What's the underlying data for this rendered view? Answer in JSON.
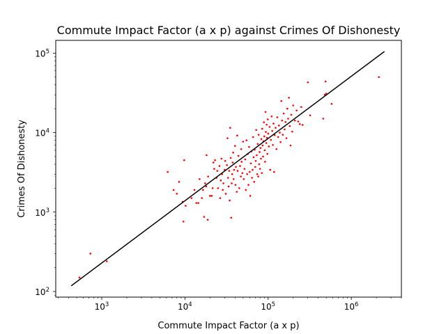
{
  "chart_data": {
    "type": "scatter",
    "title": "Commute Impact Factor (a x p) against Crimes Of Dishonesty",
    "xlabel": "Commute Impact Factor (a x p)",
    "ylabel": "Crimes Of Dishonesty",
    "xscale": "log",
    "yscale": "log",
    "xlim": [
      280,
      4000000
    ],
    "ylim": [
      85,
      145000
    ],
    "grid": false,
    "legend": "none",
    "x_ticks": [
      {
        "value": 1000,
        "base": "10",
        "exp": "3"
      },
      {
        "value": 10000,
        "base": "10",
        "exp": "4"
      },
      {
        "value": 100000,
        "base": "10",
        "exp": "5"
      },
      {
        "value": 1000000,
        "base": "10",
        "exp": "6"
      }
    ],
    "y_ticks": [
      {
        "value": 100,
        "base": "10",
        "exp": "2"
      },
      {
        "value": 1000,
        "base": "10",
        "exp": "3"
      },
      {
        "value": 10000,
        "base": "10",
        "exp": "4"
      },
      {
        "value": 100000,
        "base": "10",
        "exp": "5"
      }
    ],
    "colors": {
      "points": "#ff0000",
      "fit_line": "#000000"
    },
    "fit_line": {
      "x": [
        430,
        2500000
      ],
      "y": [
        118,
        105000
      ]
    },
    "points": [
      [
        540,
        150
      ],
      [
        730,
        300
      ],
      [
        1150,
        240
      ],
      [
        6200,
        3200
      ],
      [
        7300,
        1900
      ],
      [
        8000,
        1700
      ],
      [
        8500,
        2400
      ],
      [
        9400,
        1350
      ],
      [
        9600,
        760
      ],
      [
        9800,
        4500
      ],
      [
        10200,
        1200
      ],
      [
        12000,
        1500
      ],
      [
        13000,
        1900
      ],
      [
        13700,
        1300
      ],
      [
        14500,
        1300
      ],
      [
        15000,
        2600
      ],
      [
        16000,
        1500
      ],
      [
        16500,
        1900
      ],
      [
        17000,
        870
      ],
      [
        17500,
        2300
      ],
      [
        18000,
        2100
      ],
      [
        18200,
        5200
      ],
      [
        18800,
        800
      ],
      [
        19000,
        2800
      ],
      [
        20000,
        1600
      ],
      [
        21000,
        1600
      ],
      [
        21500,
        2000
      ],
      [
        22000,
        4200
      ],
      [
        22500,
        3500
      ],
      [
        23000,
        4500
      ],
      [
        24000,
        2700
      ],
      [
        24500,
        3300
      ],
      [
        25000,
        2000
      ],
      [
        26000,
        3800
      ],
      [
        26500,
        1500
      ],
      [
        27000,
        2500
      ],
      [
        27500,
        4700
      ],
      [
        28000,
        3000
      ],
      [
        28500,
        1900
      ],
      [
        29000,
        2300
      ],
      [
        30000,
        3400
      ],
      [
        30500,
        4400
      ],
      [
        31000,
        1700
      ],
      [
        32000,
        3900
      ],
      [
        32500,
        8500
      ],
      [
        33000,
        2700
      ],
      [
        33500,
        2100
      ],
      [
        34000,
        3300
      ],
      [
        34500,
        1400
      ],
      [
        35000,
        11500
      ],
      [
        35500,
        4800
      ],
      [
        36000,
        850
      ],
      [
        36500,
        2300
      ],
      [
        37000,
        3000
      ],
      [
        37500,
        4200
      ],
      [
        38000,
        5600
      ],
      [
        38500,
        2600
      ],
      [
        39000,
        3400
      ],
      [
        40000,
        6800
      ],
      [
        40500,
        2200
      ],
      [
        41000,
        3700
      ],
      [
        42000,
        1800
      ],
      [
        42500,
        9200
      ],
      [
        43000,
        3300
      ],
      [
        44000,
        5100
      ],
      [
        45000,
        2000
      ],
      [
        46000,
        3800
      ],
      [
        47000,
        2800
      ],
      [
        47500,
        6200
      ],
      [
        48000,
        4300
      ],
      [
        49000,
        3100
      ],
      [
        50000,
        7700
      ],
      [
        51000,
        2600
      ],
      [
        52000,
        3500
      ],
      [
        53000,
        4600
      ],
      [
        54000,
        1900
      ],
      [
        55000,
        8000
      ],
      [
        56000,
        3000
      ],
      [
        57000,
        5400
      ],
      [
        58000,
        2200
      ],
      [
        59000,
        6600
      ],
      [
        60000,
        3200
      ],
      [
        61000,
        1600
      ],
      [
        62000,
        4100
      ],
      [
        63000,
        5800
      ],
      [
        64000,
        2700
      ],
      [
        65000,
        3400
      ],
      [
        66000,
        8800
      ],
      [
        67000,
        4900
      ],
      [
        68000,
        2400
      ],
      [
        69000,
        6100
      ],
      [
        70000,
        3700
      ],
      [
        71000,
        4400
      ],
      [
        72000,
        10800
      ],
      [
        73000,
        5200
      ],
      [
        74000,
        3000
      ],
      [
        75000,
        7200
      ],
      [
        76000,
        2800
      ],
      [
        77000,
        9400
      ],
      [
        78000,
        4000
      ],
      [
        79000,
        5700
      ],
      [
        80000,
        3500
      ],
      [
        81000,
        6400
      ],
      [
        82000,
        4700
      ],
      [
        83000,
        8300
      ],
      [
        84000,
        3100
      ],
      [
        85000,
        11200
      ],
      [
        86000,
        6900
      ],
      [
        87000,
        5000
      ],
      [
        88000,
        7800
      ],
      [
        89000,
        13500
      ],
      [
        90000,
        9000
      ],
      [
        91000,
        6000
      ],
      [
        92000,
        4300
      ],
      [
        93000,
        18200
      ],
      [
        94000,
        10200
      ],
      [
        95000,
        7400
      ],
      [
        96000,
        12600
      ],
      [
        97000,
        8600
      ],
      [
        98000,
        5400
      ],
      [
        99000,
        14700
      ],
      [
        100000,
        9700
      ],
      [
        102000,
        6700
      ],
      [
        104000,
        11800
      ],
      [
        106000,
        3400
      ],
      [
        108000,
        8100
      ],
      [
        110000,
        16000
      ],
      [
        112000,
        10500
      ],
      [
        114000,
        7000
      ],
      [
        116000,
        13000
      ],
      [
        118000,
        3200
      ],
      [
        120000,
        9300
      ],
      [
        123000,
        11500
      ],
      [
        126000,
        6200
      ],
      [
        129000,
        15600
      ],
      [
        132000,
        8800
      ],
      [
        135000,
        12300
      ],
      [
        138000,
        10000
      ],
      [
        141000,
        7600
      ],
      [
        144000,
        25000
      ],
      [
        147000,
        14200
      ],
      [
        150000,
        9400
      ],
      [
        154000,
        17400
      ],
      [
        158000,
        11000
      ],
      [
        162000,
        13600
      ],
      [
        166000,
        8500
      ],
      [
        170000,
        20000
      ],
      [
        174000,
        15000
      ],
      [
        178000,
        27500
      ],
      [
        182000,
        12100
      ],
      [
        186000,
        6900
      ],
      [
        190000,
        16800
      ],
      [
        195000,
        10300
      ],
      [
        200000,
        22000
      ],
      [
        210000,
        14200
      ],
      [
        220000,
        19000
      ],
      [
        230000,
        13800
      ],
      [
        240000,
        12800
      ],
      [
        250000,
        21000
      ],
      [
        260000,
        12500
      ],
      [
        300000,
        43000
      ],
      [
        320000,
        16500
      ],
      [
        460000,
        15000
      ],
      [
        480000,
        30000
      ],
      [
        490000,
        44000
      ],
      [
        500000,
        31000
      ],
      [
        580000,
        23000
      ],
      [
        2150000,
        50000
      ]
    ]
  }
}
